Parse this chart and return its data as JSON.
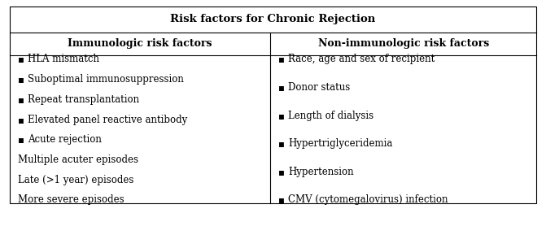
{
  "title": "Risk factors for Chronic Rejection",
  "col1_header": "Immunologic risk factors",
  "col2_header": "Non-immunologic risk factors",
  "col1_bullet_items": [
    "HLA mismatch",
    "Suboptimal immunosuppression",
    "Repeat transplantation",
    "Elevated panel reactive antibody",
    "Acute rejection"
  ],
  "col1_plain_items": [
    "Multiple acuter episodes",
    "Late (>1 year) episodes",
    "More severe episodes"
  ],
  "col2_bullet_items": [
    "Race, age and sex of recipient",
    "Donor status",
    "Length of dialysis",
    "Hypertriglyceridemia",
    "Hypertension",
    "CMV (cytomegalovirus) infection"
  ],
  "background_color": "#ffffff",
  "border_color": "#000000",
  "text_color": "#000000",
  "bullet_char": "▪",
  "title_fontsize": 9.5,
  "header_fontsize": 9,
  "body_fontsize": 8.5,
  "fig_width": 6.71,
  "fig_height": 3.05
}
